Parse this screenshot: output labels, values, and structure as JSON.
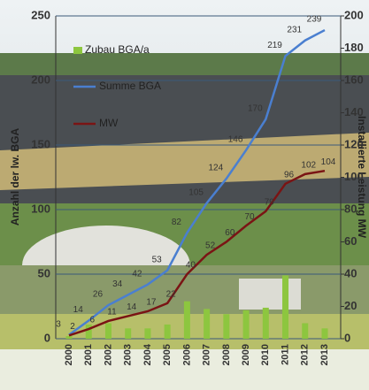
{
  "chart_data": {
    "type": "combo",
    "y_label": "Anzahl der lw. BGA",
    "y2_label": "Installierte Leistung MW",
    "categories": [
      "2000",
      "2001",
      "2002",
      "2003",
      "2004",
      "2005",
      "2006",
      "2007",
      "2008",
      "2009",
      "2010",
      "2011",
      "2012",
      "2013"
    ],
    "series": [
      {
        "name": "Zubau BGA/a",
        "type": "bar",
        "color": "#8dc63f",
        "values": [
          2,
          11,
          12,
          8,
          8,
          11,
          29,
          23,
          19,
          22,
          24,
          49,
          12,
          8
        ]
      },
      {
        "name": "Summe BGA",
        "type": "line",
        "color": "#4a7fd0",
        "values": [
          3,
          14,
          26,
          34,
          42,
          53,
          82,
          105,
          124,
          146,
          170,
          219,
          231,
          239
        ]
      },
      {
        "name": "MW",
        "type": "line",
        "axis": "y2",
        "color": "#7a1414",
        "values": [
          2,
          6,
          11,
          14,
          17,
          22,
          40,
          52,
          60,
          70,
          79,
          96,
          102,
          104
        ]
      }
    ],
    "ylim": [
      0,
      250
    ],
    "yticks": [
      0,
      50,
      100,
      150,
      200,
      250
    ],
    "y2lim": [
      0,
      200
    ],
    "y2ticks": [
      0,
      20,
      40,
      60,
      80,
      100,
      120,
      140,
      160,
      180,
      200
    ],
    "grid": true
  }
}
